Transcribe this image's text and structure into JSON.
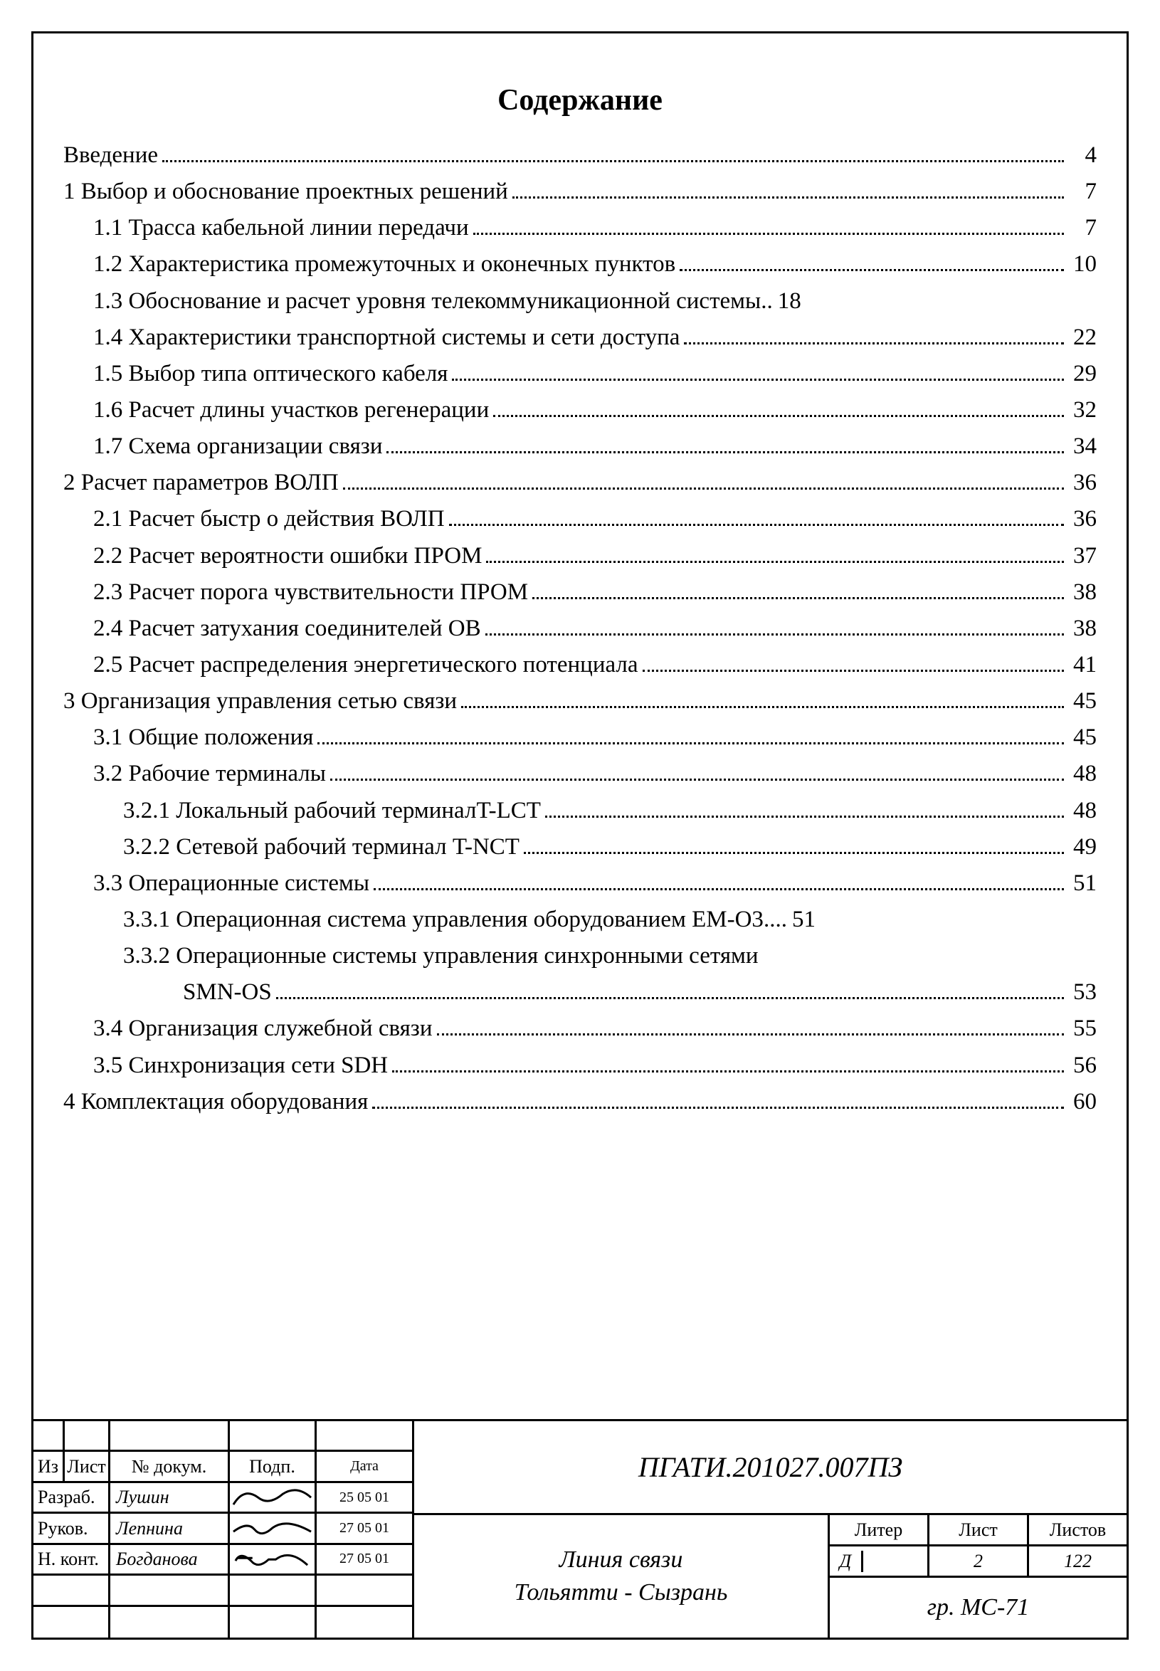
{
  "title": "Содержание",
  "toc": [
    {
      "label": "Введение",
      "page": "4",
      "indent": 0
    },
    {
      "label": "1 Выбор и обоснование проектных решений",
      "page": "7",
      "indent": 0
    },
    {
      "label": "1.1  Трасса кабельной линии передачи",
      "page": "7",
      "indent": 1
    },
    {
      "label": "1.2  Характеристика промежуточных и оконечных пунктов",
      "page": "10",
      "indent": 1
    },
    {
      "label": "1.3  Обоснование и расчет уровня телекоммуникационной системы",
      "page": "18",
      "indent": 1,
      "sep": ".."
    },
    {
      "label": "1.4  Характеристики транспортной системы и сети доступа",
      "page": "22",
      "indent": 1
    },
    {
      "label": "1.5  Выбор типа оптического кабеля",
      "page": "29",
      "indent": 1
    },
    {
      "label": "1.6  Расчет длины участков регенерации",
      "page": "32",
      "indent": 1
    },
    {
      "label": "1.7  Схема организации связи",
      "page": "34",
      "indent": 1
    },
    {
      "label": "2  Расчет параметров ВОЛП",
      "page": "36",
      "indent": 0
    },
    {
      "label": "2.1  Расчет быстр о действия ВОЛП",
      "page": "36",
      "indent": 1
    },
    {
      "label": "2.2  Расчет вероятности ошибки ПРОМ",
      "page": "37",
      "indent": 1
    },
    {
      "label": "2.3  Расчет порога чувствительности ПРОМ",
      "page": "38",
      "indent": 1
    },
    {
      "label": "2.4  Расчет затухания соединителей ОВ",
      "page": "38",
      "indent": 1
    },
    {
      "label": "2.5  Расчет распределения энергетического потенциала",
      "page": "41",
      "indent": 1
    },
    {
      "label": "3  Организация управления сетью связи",
      "page": "45",
      "indent": 0
    },
    {
      "label": "3.1   Общие положения",
      "page": "45",
      "indent": 1
    },
    {
      "label": "3.2  Рабочие терминалы",
      "page": "48",
      "indent": 1
    },
    {
      "label": "3.2.1   Локальный рабочий терминалT-LCT",
      "page": "48",
      "indent": 2
    },
    {
      "label": "3.2.2  Сетевой рабочий терминал T-NCT",
      "page": "49",
      "indent": 2
    },
    {
      "label": "3.3  Операционные системы",
      "page": "51",
      "indent": 1
    },
    {
      "label": "3.3.1  Операционная система управления оборудованием EM-O3",
      "page": "51",
      "indent": 2,
      "sep": "...."
    },
    {
      "label": "3.3.2  Операционные системы управления синхронными сетями",
      "indent": 2,
      "nobreak": true
    },
    {
      "label": "SMN-OS",
      "page": "53",
      "indent": 3
    },
    {
      "label": "3.4  Организация служебной связи",
      "page": "55",
      "indent": 1
    },
    {
      "label": "3.5  Синхронизация сети SDH",
      "page": "56",
      "indent": 1
    },
    {
      "label": "4  Комплектация оборудования",
      "page": "60",
      "indent": 0
    }
  ],
  "stamp": {
    "doc_code": "ПГАТИ.201027.007ПЗ",
    "project_title_1": "Линия связи",
    "project_title_2": "Тольятти - Сызрань",
    "headers": {
      "iz": "Из",
      "list": "Лист",
      "docnum": "№ докум.",
      "sign": "Подп.",
      "date": "Дата"
    },
    "rows": [
      {
        "role": "Разраб.",
        "name": "Лушин",
        "date": "25 05 01"
      },
      {
        "role": "Руков.",
        "name": "Лепнина",
        "date": "27 05 01"
      },
      {
        "role": "Н. конт.",
        "name": "Богданова",
        "date": "27 05 01"
      },
      {
        "role": "",
        "name": "",
        "date": ""
      },
      {
        "role": "",
        "name": "",
        "date": ""
      }
    ],
    "grid": {
      "liter_h": "Литер",
      "sheet_h": "Лист",
      "total_h": "Листов",
      "liter": "Д",
      "sheet": "2",
      "total": "122",
      "group": "гр. МС-71"
    }
  },
  "colors": {
    "text": "#000000",
    "bg": "#ffffff"
  }
}
